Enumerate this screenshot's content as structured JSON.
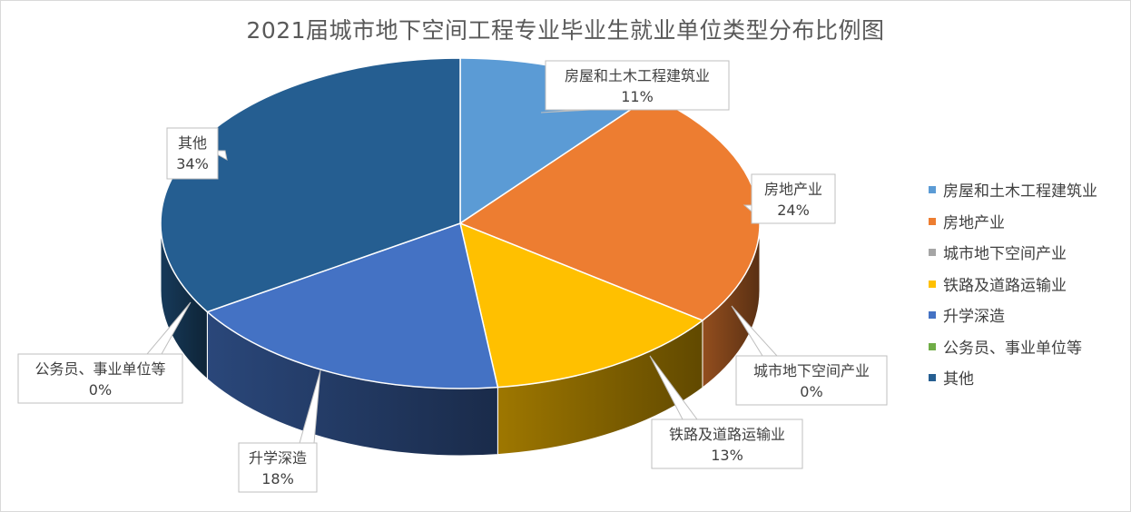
{
  "chart_data": {
    "type": "pie",
    "variant": "3d",
    "title": "2021届城市地下空间工程专业毕业生就业单位类型分布比例图",
    "slices": [
      {
        "name": "房屋和土木工程建筑业",
        "value": 11,
        "label": "11%",
        "color": "#5b9bd5"
      },
      {
        "name": "房地产业",
        "value": 24,
        "label": "24%",
        "color": "#ed7d31"
      },
      {
        "name": "城市地下空间产业",
        "value": 0,
        "label": "0%",
        "color": "#a5a5a5"
      },
      {
        "name": "铁路及道路运输业",
        "value": 13,
        "label": "13%",
        "color": "#ffc000"
      },
      {
        "name": "升学深造",
        "value": 18,
        "label": "18%",
        "color": "#4472c4"
      },
      {
        "name": "公务员、事业单位等",
        "value": 0,
        "label": "0%",
        "color": "#70ad47"
      },
      {
        "name": "其他",
        "value": 34,
        "label": "34%",
        "color": "#255e91"
      }
    ],
    "legend_position": "right"
  }
}
